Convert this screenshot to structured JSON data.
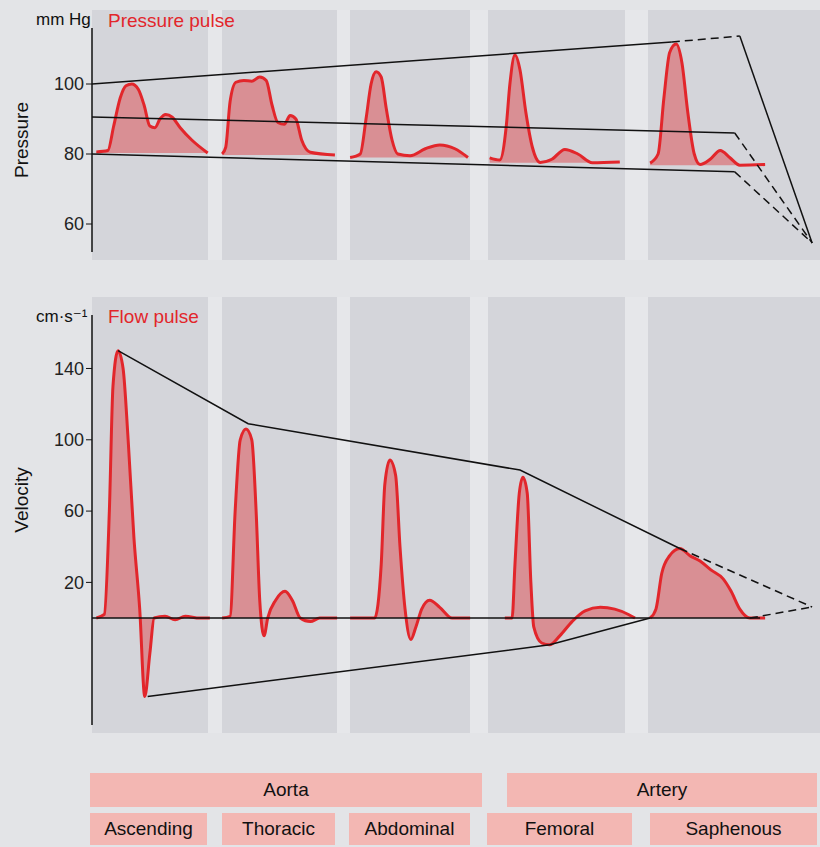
{
  "chart_data": [
    {
      "type": "area",
      "title": "Pressure pulse",
      "ylabel": "Pressure",
      "yunit": "mm Hg",
      "xlim": [
        0,
        100
      ],
      "ylim": [
        52,
        116
      ],
      "yticks": [
        60,
        80,
        100
      ],
      "tick_labels": "y",
      "grid": false,
      "series": [
        {
          "type": "area",
          "color": "#e2262b",
          "x": [
            0.6,
            2.2,
            3.0,
            3.9,
            4.7,
            5.5,
            6.4,
            7.2,
            8.0,
            8.7,
            9.4,
            10.2,
            11.1,
            12.2,
            13.8,
            16.0
          ],
          "values": [
            80.6,
            81.0,
            88,
            96,
            99.5,
            100,
            98.5,
            94,
            88,
            87.5,
            90,
            91.3,
            90.5,
            87.5,
            84,
            80.3
          ]
        },
        {
          "type": "area",
          "color": "#e2262b",
          "x": [
            18.0,
            18.5,
            19.1,
            19.9,
            21.0,
            22.1,
            23.2,
            24.1,
            24.9,
            25.7,
            26.6,
            27.4,
            28.2,
            29.0,
            30.2,
            33.6
          ],
          "values": [
            80.0,
            82,
            95,
            100.5,
            101.0,
            100.8,
            102,
            101,
            94,
            89,
            88.5,
            91,
            90,
            84,
            80.5,
            79.7
          ]
        },
        {
          "type": "area",
          "color": "#e2262b",
          "x": [
            35.7,
            37.1,
            37.9,
            38.6,
            39.3,
            40.0,
            40.7,
            41.5,
            42.3,
            44.0,
            46.1,
            48.1,
            50.2,
            52.0
          ],
          "values": [
            79,
            80,
            90,
            100,
            103.5,
            102,
            93,
            84,
            80,
            79.5,
            81.5,
            82.6,
            81.5,
            79
          ]
        },
        {
          "type": "area",
          "color": "#e2262b",
          "x": [
            55.0,
            56.4,
            57.3,
            57.8,
            58.5,
            59.2,
            60.0,
            60.9,
            62.0,
            63.6,
            65.4,
            67.2,
            69.2,
            73.0
          ],
          "values": [
            78.9,
            78.3,
            88,
            100,
            108.3,
            104,
            92,
            82,
            77.6,
            78.5,
            81.3,
            80,
            77.5,
            77.7
          ]
        },
        {
          "type": "area",
          "color": "#e2262b",
          "x": [
            77.2,
            78.3,
            79.1,
            79.9,
            80.8,
            81.6,
            82.4,
            83.3,
            84.1,
            85.5,
            86.9,
            88.2,
            89.6,
            93.1
          ],
          "values": [
            77.4,
            80,
            96,
            109,
            111.4,
            106,
            92,
            80,
            77,
            78.5,
            81,
            79,
            76.8,
            77.0
          ]
        },
        {
          "type": "line",
          "color": "#111111",
          "line_style": "solid",
          "x": [
            0,
            80.2
          ],
          "values": [
            100,
            112
          ]
        },
        {
          "type": "line",
          "color": "#111111",
          "line_style": "dashed",
          "x": [
            80.2,
            89.6
          ],
          "values": [
            112,
            113.7
          ]
        },
        {
          "type": "line",
          "color": "#111111",
          "line_style": "solid",
          "x": [
            89.6,
            99.6
          ],
          "values": [
            113.7,
            54.6
          ]
        },
        {
          "type": "line",
          "color": "#111111",
          "line_style": "solid",
          "x": [
            0,
            88.9
          ],
          "values": [
            90.6,
            86
          ]
        },
        {
          "type": "line",
          "color": "#111111",
          "line_style": "dashed",
          "x": [
            88.9,
            99.6
          ],
          "values": [
            86,
            54.6
          ]
        },
        {
          "type": "line",
          "color": "#111111",
          "line_style": "solid",
          "x": [
            0,
            88.9
          ],
          "values": [
            80,
            74.9
          ]
        },
        {
          "type": "line",
          "color": "#111111",
          "line_style": "dashed",
          "x": [
            88.9,
            99.6
          ],
          "values": [
            74.9,
            54.6
          ]
        }
      ]
    },
    {
      "type": "area",
      "title": "Flow pulse",
      "ylabel": "Velocity",
      "yunit": "cm·s⁻¹",
      "xlim": [
        0,
        100
      ],
      "ylim": [
        -60,
        170
      ],
      "yticks": [
        20,
        60,
        100,
        140
      ],
      "tick_labels": "y",
      "grid": false,
      "series": [
        {
          "type": "area",
          "color": "#e2262b",
          "x": [
            0.6,
            1.7,
            2.4,
            2.9,
            3.6,
            4.3,
            5.0,
            5.8,
            6.6,
            7.3,
            8.0,
            8.6,
            10.1,
            11.5,
            12.9,
            14.9,
            16.3
          ],
          "values": [
            0,
            2,
            60,
            130,
            150,
            140,
            100,
            45,
            5,
            -44,
            -20,
            0,
            1,
            -1,
            1,
            0,
            0
          ]
        },
        {
          "type": "area",
          "color": "#e2262b",
          "x": [
            18.0,
            19.1,
            19.8,
            20.5,
            21.3,
            22.1,
            22.7,
            23.2,
            23.8,
            24.3,
            25.4,
            26.7,
            27.7,
            28.8,
            30.2,
            31.5,
            33.9
          ],
          "values": [
            0,
            1,
            60,
            100,
            106,
            100,
            60,
            10,
            -10,
            0,
            10,
            15,
            10,
            0,
            -2,
            0,
            0
          ]
        },
        {
          "type": "area",
          "color": "#e2262b",
          "x": [
            35.7,
            39.1,
            40.0,
            40.5,
            41.2,
            42.0,
            42.6,
            43.3,
            44.1,
            44.8,
            45.6,
            46.7,
            48.1,
            49.8,
            52.3
          ],
          "values": [
            0,
            0,
            30,
            75,
            88.6,
            80,
            40,
            5,
            -12,
            -5,
            5,
            10,
            6,
            0,
            0
          ]
        },
        {
          "type": "area",
          "color": "#e2262b",
          "x": [
            57.1,
            58.1,
            58.5,
            59.1,
            59.6,
            60.2,
            60.7,
            61.1,
            62.2,
            63.3,
            64.7,
            66.4,
            68.2,
            70.3,
            72.3,
            74.2,
            75.1
          ],
          "values": [
            0,
            0,
            30,
            70,
            79,
            70,
            20,
            -5,
            -14,
            -15,
            -10,
            -2,
            4,
            6,
            5,
            2,
            0
          ]
        },
        {
          "type": "area",
          "color": "#e2262b",
          "x": [
            77.2,
            78.0,
            78.8,
            79.9,
            81.3,
            82.7,
            84.1,
            85.6,
            87.3,
            88.4,
            89.6,
            91.0,
            93.1
          ],
          "values": [
            0,
            5,
            25,
            35,
            39,
            35,
            32,
            27,
            22,
            15,
            5,
            0,
            0
          ]
        },
        {
          "type": "line",
          "color": "#111111",
          "line_style": "solid",
          "x": [
            3.6,
            21.6,
            59.2,
            81.3
          ],
          "values": [
            150,
            109,
            83,
            39
          ]
        },
        {
          "type": "line",
          "color": "#111111",
          "line_style": "dashed",
          "x": [
            81.3,
            99.6
          ],
          "values": [
            39,
            6.2
          ]
        },
        {
          "type": "line",
          "color": "#111111",
          "line_style": "solid",
          "x": [
            7.7,
            63.3,
            77.2
          ],
          "values": [
            -44,
            -15,
            0
          ]
        },
        {
          "type": "line",
          "color": "#111111",
          "line_style": "solid",
          "x": [
            0,
            92.4
          ],
          "values": [
            0,
            0
          ]
        },
        {
          "type": "line",
          "color": "#111111",
          "line_style": "dashed",
          "x": [
            91.0,
            99.6
          ],
          "values": [
            0,
            6.2
          ]
        }
      ]
    }
  ],
  "sections": [
    {
      "label": "Aorta",
      "segments": [
        "Ascending",
        "Thoracic",
        "Abdominal"
      ]
    },
    {
      "label": "Artery",
      "segments": [
        "Femoral",
        "Saphenous"
      ]
    }
  ]
}
